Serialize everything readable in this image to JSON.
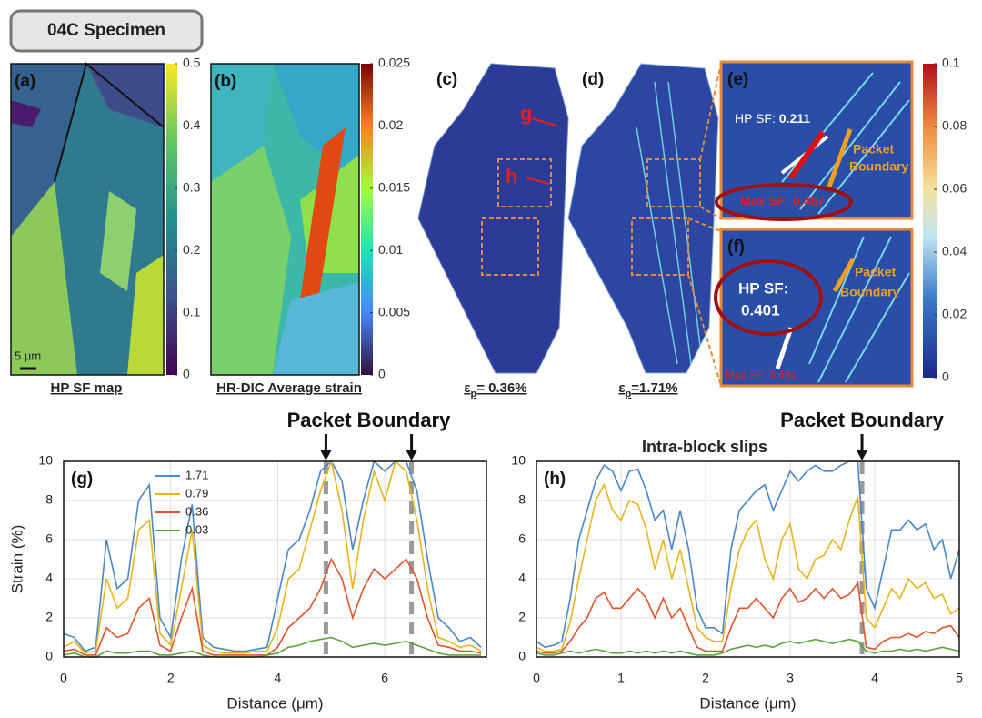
{
  "header": {
    "title": "04C Specimen"
  },
  "panels": {
    "a": {
      "label": "(a)",
      "scale_bar": "5 μm",
      "caption": "HP SF map"
    },
    "b": {
      "label": "(b)",
      "caption": "HR-DIC Average strain"
    },
    "c": {
      "label": "(c)",
      "markers": [
        "g",
        "h"
      ],
      "caption": {
        "symbol": "ε",
        "subscript": "p",
        "text": "= 0.36%"
      }
    },
    "d": {
      "label": "(d)",
      "caption": {
        "symbol": "ε",
        "subscript": "p",
        "text": "=1.71%"
      }
    },
    "e": {
      "label": "(e)",
      "hp_sf": "HP SF:",
      "hp_sf_value": "0.211",
      "boundary": [
        "Packet",
        "Boundary"
      ],
      "max_sf": "Max SF: 0.487"
    },
    "f": {
      "label": "(f)",
      "hp_sf": "HP SF:",
      "hp_sf_value": "0.401",
      "boundary": [
        "Packet",
        "Boundary"
      ],
      "max_sf": "Max SF: 0.491"
    }
  },
  "colorbars": [
    {
      "lim": [
        0,
        0.5
      ],
      "ticks": [
        0,
        0.1,
        0.2,
        0.3,
        0.4,
        0.5
      ]
    },
    {
      "lim": [
        0,
        0.025
      ],
      "ticks": [
        0,
        0.005,
        0.01,
        0.015,
        0.02,
        0.025
      ]
    },
    {
      "lim": [
        0,
        0.1
      ],
      "ticks": [
        0,
        0.02,
        0.04,
        0.06,
        0.08,
        0.1
      ]
    }
  ],
  "chart_data": [
    {
      "type": "line",
      "label": "(g)",
      "annotation": "Packet Boundary",
      "vlines": [
        4.9,
        6.5
      ],
      "x_label": "Distance (μm)",
      "y_label": "Strain (%)",
      "grid": true,
      "xlim": [
        0,
        7.9
      ],
      "xticks": [
        0,
        2,
        4,
        6
      ],
      "ylim": [
        0,
        10
      ],
      "yticks": [
        0,
        2,
        4,
        6,
        8,
        10
      ],
      "x": [
        0,
        0.2,
        0.4,
        0.6,
        0.8,
        1.0,
        1.2,
        1.4,
        1.6,
        1.8,
        2.0,
        2.2,
        2.4,
        2.6,
        2.8,
        3.0,
        3.2,
        3.4,
        3.6,
        3.8,
        4.0,
        4.2,
        4.4,
        4.6,
        4.8,
        5.0,
        5.2,
        5.4,
        5.6,
        5.8,
        6.0,
        6.2,
        6.4,
        6.6,
        6.8,
        7.0,
        7.2,
        7.4,
        7.6,
        7.8
      ],
      "series": [
        {
          "name": "1.71",
          "color": "#4a86c8",
          "values": [
            1.2,
            1.0,
            0.3,
            0.5,
            6.0,
            3.5,
            4.0,
            8.0,
            8.8,
            2.0,
            1.0,
            5.0,
            7.8,
            1.0,
            0.5,
            0.4,
            0.3,
            0.3,
            0.4,
            0.5,
            3.0,
            5.5,
            6.0,
            7.5,
            9.5,
            10,
            9.0,
            5.5,
            8.0,
            10,
            9.5,
            10,
            10,
            8.5,
            5.0,
            2.0,
            1.5,
            0.8,
            1.0,
            0.5
          ]
        },
        {
          "name": "0.79",
          "color": "#e8b41c",
          "values": [
            0.5,
            0.8,
            0.2,
            0.3,
            4.0,
            2.5,
            3.0,
            6.5,
            7.0,
            1.2,
            0.6,
            3.5,
            6.5,
            0.6,
            0.3,
            0.2,
            0.2,
            0.2,
            0.3,
            0.3,
            1.5,
            4.0,
            4.5,
            6.5,
            8.5,
            10,
            7.5,
            3.5,
            7.0,
            9.5,
            8.0,
            10,
            9.5,
            7.0,
            3.5,
            1.0,
            0.8,
            0.5,
            0.6,
            0.3
          ]
        },
        {
          "name": "0.36",
          "color": "#e0522a",
          "values": [
            0.3,
            0.4,
            0.1,
            0.1,
            1.5,
            1.0,
            1.2,
            2.5,
            3.0,
            0.6,
            0.3,
            2.0,
            3.5,
            0.3,
            0.1,
            0.1,
            0.1,
            0.1,
            0.1,
            0.1,
            0.5,
            1.5,
            2.0,
            2.5,
            3.5,
            5.0,
            4.0,
            2.0,
            3.5,
            4.5,
            4.0,
            4.5,
            5.0,
            4.0,
            2.0,
            0.6,
            0.5,
            0.3,
            0.3,
            0.2
          ]
        },
        {
          "name": "0.03",
          "color": "#5aa33c",
          "values": [
            0.1,
            0.2,
            0,
            0,
            0.3,
            0.2,
            0.2,
            0.3,
            0.3,
            0.1,
            0.1,
            0.2,
            0.3,
            0.1,
            0,
            0,
            0,
            0,
            0,
            0.1,
            0.2,
            0.5,
            0.6,
            0.8,
            0.9,
            1.0,
            0.8,
            0.5,
            0.6,
            0.7,
            0.6,
            0.7,
            0.8,
            0.6,
            0.4,
            0.2,
            0.1,
            0.1,
            0.1,
            0.1
          ]
        }
      ]
    },
    {
      "type": "line",
      "label": "(h)",
      "annotation": "Packet Boundary",
      "annotation2": "Intra-block slips",
      "vlines": [
        3.85
      ],
      "x_label": "Distance (μm)",
      "grid": true,
      "xlim": [
        0,
        5
      ],
      "xticks": [
        0,
        1,
        2,
        3,
        4,
        5
      ],
      "ylim": [
        0,
        10
      ],
      "yticks": [
        0,
        2,
        4,
        6,
        8,
        10
      ],
      "x": [
        0,
        0.1,
        0.2,
        0.3,
        0.4,
        0.5,
        0.6,
        0.7,
        0.8,
        0.9,
        1.0,
        1.1,
        1.2,
        1.3,
        1.4,
        1.5,
        1.6,
        1.7,
        1.8,
        1.9,
        2.0,
        2.1,
        2.2,
        2.3,
        2.4,
        2.5,
        2.6,
        2.7,
        2.8,
        2.9,
        3.0,
        3.1,
        3.2,
        3.3,
        3.4,
        3.5,
        3.6,
        3.7,
        3.8,
        3.9,
        4.0,
        4.1,
        4.2,
        4.3,
        4.4,
        4.5,
        4.6,
        4.7,
        4.8,
        4.9,
        5.0
      ],
      "series": [
        {
          "name": "1.71",
          "color": "#4a86c8",
          "values": [
            0.8,
            0.5,
            0.6,
            0.8,
            3.0,
            6.0,
            7.5,
            9.0,
            9.8,
            9.5,
            8.5,
            9.5,
            9.6,
            8.5,
            7.0,
            7.5,
            5.5,
            7.5,
            5.5,
            2.5,
            1.5,
            1.5,
            1.2,
            5.5,
            7.5,
            8.0,
            8.5,
            8.8,
            7.5,
            8.5,
            9.5,
            9.0,
            9.5,
            9.8,
            9.5,
            9.5,
            9.8,
            10,
            10,
            3.5,
            2.5,
            4.5,
            6.5,
            6.5,
            7.0,
            6.5,
            6.8,
            5.5,
            6.0,
            4.0,
            5.5
          ]
        },
        {
          "name": "0.79",
          "color": "#e8b41c",
          "values": [
            0.5,
            0.3,
            0.3,
            0.4,
            1.8,
            4.0,
            6.0,
            8.0,
            8.8,
            7.5,
            7.0,
            8.0,
            7.8,
            6.5,
            4.5,
            6.0,
            4.0,
            5.5,
            3.5,
            1.5,
            1.0,
            0.8,
            0.8,
            3.5,
            5.5,
            6.5,
            7.0,
            5.0,
            4.0,
            6.0,
            6.8,
            4.5,
            4.0,
            5.0,
            5.2,
            6.0,
            5.5,
            7.0,
            8.2,
            2.0,
            1.5,
            2.5,
            3.5,
            3.0,
            4.0,
            3.5,
            3.8,
            3.0,
            3.2,
            2.2,
            2.5
          ]
        },
        {
          "name": "0.36",
          "color": "#e0522a",
          "values": [
            0.3,
            0.2,
            0.2,
            0.3,
            0.8,
            1.5,
            2.0,
            3.0,
            3.3,
            2.5,
            2.5,
            3.0,
            3.5,
            3.0,
            2.0,
            3.0,
            2.0,
            2.5,
            1.5,
            0.5,
            0.3,
            0.3,
            0.3,
            1.5,
            2.5,
            2.5,
            3.0,
            2.5,
            2.0,
            3.0,
            3.5,
            2.8,
            3.0,
            3.5,
            3.0,
            3.5,
            3.0,
            3.2,
            3.8,
            0.5,
            0.4,
            0.8,
            1.0,
            1.0,
            1.2,
            1.0,
            1.3,
            1.2,
            1.5,
            1.6,
            1.0
          ]
        },
        {
          "name": "0.03",
          "color": "#5aa33c",
          "values": [
            0.2,
            0.1,
            0.1,
            0.2,
            0.3,
            0.2,
            0.3,
            0.4,
            0.3,
            0.2,
            0.2,
            0.3,
            0.2,
            0.3,
            0.2,
            0.3,
            0.2,
            0.3,
            0.2,
            0.1,
            0.1,
            0.1,
            0.2,
            0.4,
            0.5,
            0.6,
            0.5,
            0.6,
            0.5,
            0.7,
            0.8,
            0.7,
            0.8,
            0.9,
            0.8,
            0.7,
            0.8,
            0.9,
            0.8,
            0.3,
            0.2,
            0.3,
            0.3,
            0.4,
            0.3,
            0.4,
            0.3,
            0.4,
            0.5,
            0.4,
            0.3
          ]
        }
      ]
    }
  ]
}
